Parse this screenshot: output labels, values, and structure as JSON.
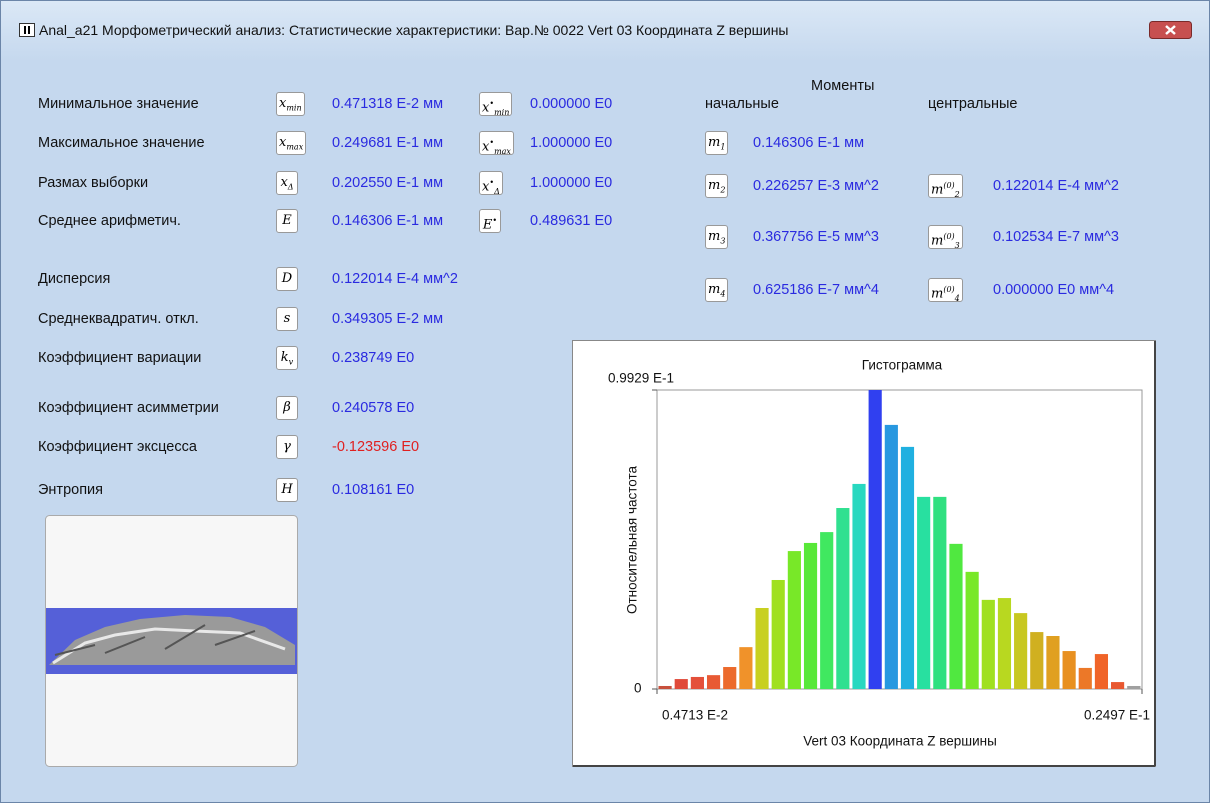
{
  "window": {
    "title": "Anal_a21 Морфометрический анализ: Статистические характеристики: Вар.№ 0022 Vert 03 Координата Z вершины"
  },
  "stats": [
    {
      "label": "Минимальное значение",
      "symbol": "x",
      "sub": "min",
      "value": "0.471318 E-2 мм",
      "symbol2": "x",
      "sup2": "•",
      "sub2": "min",
      "value2": "0.000000 E0"
    },
    {
      "label": "Максимальное значение",
      "symbol": "x",
      "sub": "max",
      "value": "0.249681 E-1 мм",
      "symbol2": "x",
      "sup2": "•",
      "sub2": "max",
      "value2": "1.000000 E0"
    },
    {
      "label": "Размах выборки",
      "symbol": "x",
      "sub": "Δ",
      "value": "0.202550 E-1 мм",
      "symbol2": "x",
      "sup2": "•",
      "sub2": "Δ",
      "value2": "1.000000 E0"
    },
    {
      "label": "Среднее арифметич.",
      "symbol": "E",
      "value": "0.146306 E-1 мм",
      "symbol2": "E",
      "sup2": "•",
      "value2": "0.489631 E0"
    },
    {
      "label": "Дисперсия",
      "symbol": "D",
      "value": "0.122014 E-4 мм^2"
    },
    {
      "label": "Среднеквадратич. откл.",
      "symbol": "s",
      "value": "0.349305 E-2 мм"
    },
    {
      "label": "Коэффициент вариации",
      "symbol": "k",
      "sub": "v",
      "value": "0.238749 E0"
    },
    {
      "label": "Коэффициент асимметрии",
      "symbol": "β",
      "value": "0.240578 E0"
    },
    {
      "label": "Коэффициент эксцесса",
      "symbol": "γ",
      "value": "-0.123596 E0",
      "color": "#e02020"
    },
    {
      "label": "Энтропия",
      "symbol": "H",
      "value": "0.108161 E0"
    }
  ],
  "moments": {
    "title": "Моменты",
    "initial_header": "начальные",
    "central_header": "центральные",
    "rows": [
      {
        "symbol": "m",
        "sub": "1",
        "value": "0.146306 E-1 мм"
      },
      {
        "symbol": "m",
        "sub": "2",
        "value": "0.226257 E-3 мм^2",
        "symbol2": "m",
        "sub2": "2",
        "sup2": "(0)",
        "value2": "0.122014 E-4 мм^2"
      },
      {
        "symbol": "m",
        "sub": "3",
        "value": "0.367756 E-5 мм^3",
        "symbol2": "m",
        "sub2": "3",
        "sup2": "(0)",
        "value2": "0.102534 E-7 мм^3"
      },
      {
        "symbol": "m",
        "sub": "4",
        "value": "0.625186 E-7 мм^4",
        "symbol2": "m",
        "sub2": "4",
        "sup2": "(0)",
        "value2": "0.000000 E0 мм^4"
      }
    ]
  },
  "histogram": {
    "type": "histogram",
    "title": "Гистограмма",
    "x_label": "Vert 03 Координата Z вершины",
    "y_label": "Относительная частота",
    "bins": [
      0.004713,
      0.005388,
      0.006063,
      0.006738,
      0.007413,
      0.008088,
      0.008763,
      0.009438,
      0.010113,
      0.010788,
      0.011463,
      0.012138,
      0.012813,
      0.013488,
      0.014163,
      0.014838,
      0.015513,
      0.016188,
      0.016863,
      0.017538,
      0.018213,
      0.018888,
      0.019563,
      0.020238,
      0.020913,
      0.021588,
      0.022263,
      0.022938,
      0.023613,
      0.024288,
      0.02497
    ],
    "values": [
      0.001,
      0.0033,
      0.004,
      0.0046,
      0.0073,
      0.0139,
      0.0269,
      0.0362,
      0.0458,
      0.0485,
      0.0521,
      0.0601,
      0.0681,
      0.09929,
      0.0877,
      0.0804,
      0.0638,
      0.0638,
      0.0482,
      0.0389,
      0.0296,
      0.0302,
      0.0252,
      0.0189,
      0.0176,
      0.0126,
      0.007,
      0.0116,
      0.0023,
      0.001
    ],
    "colors": [
      "#c8503c",
      "#e04a3a",
      "#e4503a",
      "#e85a34",
      "#ec6a2c",
      "#f0922a",
      "#c8d020",
      "#a0e020",
      "#78e828",
      "#58e838",
      "#40e860",
      "#30e090",
      "#28d8c0",
      "#3040f0",
      "#2898e0",
      "#20b0e0",
      "#28e0a0",
      "#30e080",
      "#50e840",
      "#78e828",
      "#a0e020",
      "#b8d820",
      "#c8c820",
      "#d0b020",
      "#e0a020",
      "#e89020",
      "#ec7828",
      "#f06428",
      "#e85830",
      "#a0a0a0"
    ],
    "xlim": [
      0.004713,
      0.02497
    ],
    "ylim": [
      0,
      0.09929
    ],
    "xticks": [
      {
        "value": 0.004713,
        "label": "0.4713 E-2"
      },
      {
        "value": 0.02497,
        "label": "0.2497 E-1"
      }
    ],
    "yticks": [
      0,
      {
        "value": 0.09929,
        "label": "0.9929 E-1"
      }
    ]
  }
}
